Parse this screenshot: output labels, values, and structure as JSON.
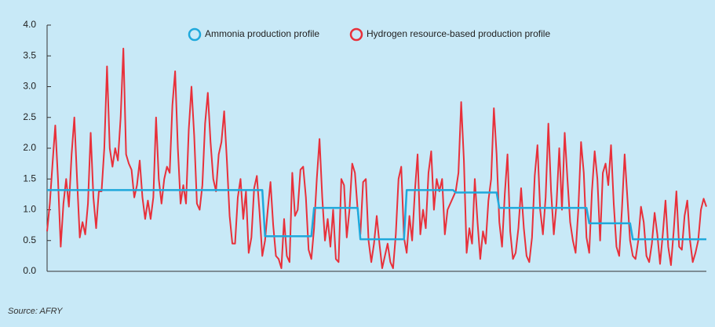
{
  "chart_data": {
    "type": "line",
    "source": "Source: AFRY",
    "ylim": [
      0,
      4
    ],
    "yticks": [
      {
        "value": 0,
        "label": "0.0"
      },
      0.5,
      {
        "value": 1,
        "label": "1.0"
      },
      1.5,
      {
        "value": 2,
        "label": "2.0"
      },
      2.5,
      {
        "value": 3,
        "label": "3.0"
      },
      3.5,
      {
        "value": 4,
        "label": "4.0"
      }
    ],
    "series": [
      {
        "name": "Ammonia production profile",
        "color": "#1fa9dc",
        "values": [
          1.32,
          1.32,
          1.32,
          1.32,
          1.32,
          1.32,
          1.32,
          1.32,
          1.32,
          1.32,
          1.32,
          1.32,
          1.32,
          1.32,
          1.32,
          1.32,
          1.32,
          1.32,
          1.32,
          1.32,
          1.32,
          1.32,
          1.32,
          1.32,
          1.32,
          1.32,
          1.32,
          1.32,
          1.32,
          1.32,
          1.32,
          1.32,
          1.32,
          1.32,
          1.32,
          1.32,
          1.32,
          1.32,
          1.32,
          1.32,
          1.32,
          1.32,
          1.32,
          1.32,
          1.32,
          1.32,
          1.32,
          1.32,
          1.32,
          1.32,
          1.32,
          1.32,
          1.32,
          1.32,
          1.32,
          1.32,
          1.32,
          1.32,
          1.32,
          1.32,
          1.32,
          1.32,
          1.32,
          1.32,
          1.32,
          1.32,
          1.32,
          1.32,
          1.32,
          1.32,
          1.32,
          1.32,
          1.32,
          1.32,
          1.32,
          1.32,
          1.32,
          1.32,
          1.32,
          1.32,
          0.57,
          0.57,
          0.57,
          0.57,
          0.57,
          0.57,
          0.57,
          0.57,
          0.57,
          0.57,
          0.57,
          0.57,
          0.57,
          0.57,
          0.57,
          0.57,
          0.57,
          0.57,
          1.03,
          1.03,
          1.03,
          1.03,
          1.03,
          1.03,
          1.03,
          1.03,
          1.03,
          1.03,
          1.03,
          1.03,
          1.03,
          1.03,
          1.03,
          1.03,
          1.03,
          0.52,
          0.52,
          0.52,
          0.52,
          0.52,
          0.52,
          0.52,
          0.52,
          0.52,
          0.52,
          0.52,
          0.52,
          0.52,
          0.52,
          0.52,
          0.52,
          0.52,
          1.32,
          1.32,
          1.32,
          1.32,
          1.32,
          1.32,
          1.32,
          1.32,
          1.32,
          1.32,
          1.32,
          1.32,
          1.32,
          1.32,
          1.32,
          1.32,
          1.32,
          1.32,
          1.28,
          1.28,
          1.28,
          1.28,
          1.28,
          1.28,
          1.28,
          1.28,
          1.28,
          1.28,
          1.28,
          1.28,
          1.28,
          1.28,
          1.28,
          1.28,
          1.03,
          1.03,
          1.03,
          1.03,
          1.03,
          1.03,
          1.03,
          1.03,
          1.03,
          1.03,
          1.03,
          1.03,
          1.03,
          1.03,
          1.03,
          1.03,
          1.03,
          1.03,
          1.03,
          1.03,
          1.03,
          1.03,
          1.03,
          1.03,
          1.03,
          1.03,
          1.03,
          1.03,
          1.03,
          1.03,
          1.03,
          1.03,
          1.03,
          0.78,
          0.78,
          0.78,
          0.78,
          0.78,
          0.78,
          0.78,
          0.78,
          0.78,
          0.78,
          0.78,
          0.78,
          0.78,
          0.78,
          0.78,
          0.78,
          0.52,
          0.52,
          0.52,
          0.52,
          0.52,
          0.52,
          0.52,
          0.52,
          0.52,
          0.52,
          0.52,
          0.52,
          0.52,
          0.52,
          0.52,
          0.52,
          0.52,
          0.52,
          0.52,
          0.52,
          0.52,
          0.52,
          0.52,
          0.52,
          0.52,
          0.52,
          0.52,
          0.52
        ]
      },
      {
        "name": "Hydrogen resource-based production profile",
        "color": "#e8303a",
        "values": [
          0.65,
          1.1,
          1.75,
          2.37,
          1.5,
          0.4,
          1.1,
          1.5,
          1.05,
          1.9,
          2.5,
          1.5,
          0.55,
          0.8,
          0.6,
          1.1,
          2.25,
          1.2,
          0.7,
          1.3,
          1.3,
          2.0,
          3.33,
          2.0,
          1.7,
          2.0,
          1.8,
          2.5,
          3.62,
          1.9,
          1.75,
          1.65,
          1.2,
          1.4,
          1.8,
          1.2,
          0.85,
          1.15,
          0.85,
          1.2,
          2.5,
          1.5,
          1.1,
          1.5,
          1.7,
          1.6,
          2.7,
          3.25,
          2.0,
          1.1,
          1.4,
          1.1,
          2.3,
          3.0,
          2.2,
          1.1,
          1.0,
          1.4,
          2.4,
          2.9,
          2.1,
          1.5,
          1.3,
          1.9,
          2.1,
          2.6,
          1.8,
          0.9,
          0.45,
          0.45,
          1.2,
          1.5,
          0.85,
          1.3,
          0.3,
          0.55,
          1.35,
          1.55,
          0.95,
          0.25,
          0.5,
          1.0,
          1.45,
          0.75,
          0.25,
          0.2,
          0.05,
          0.85,
          0.25,
          0.15,
          1.6,
          0.9,
          1.0,
          1.65,
          1.7,
          1.2,
          0.35,
          0.2,
          0.7,
          1.5,
          2.15,
          1.2,
          0.5,
          0.85,
          0.4,
          1.0,
          0.2,
          0.15,
          1.5,
          1.4,
          0.55,
          1.0,
          1.75,
          1.6,
          1.0,
          0.6,
          1.45,
          1.5,
          0.5,
          0.15,
          0.45,
          0.9,
          0.45,
          0.05,
          0.25,
          0.45,
          0.15,
          0.05,
          0.6,
          1.5,
          1.7,
          0.55,
          0.3,
          0.9,
          0.5,
          1.3,
          1.9,
          0.6,
          1.0,
          0.7,
          1.6,
          1.95,
          1.0,
          1.5,
          1.3,
          1.5,
          0.6,
          1.0,
          1.1,
          1.2,
          1.3,
          1.6,
          2.75,
          1.8,
          0.3,
          0.7,
          0.45,
          1.5,
          0.8,
          0.2,
          0.65,
          0.45,
          1.15,
          1.5,
          2.65,
          1.9,
          0.8,
          0.4,
          1.25,
          1.9,
          0.65,
          0.2,
          0.3,
          0.7,
          1.35,
          0.7,
          0.25,
          0.15,
          0.55,
          1.55,
          2.05,
          1.0,
          0.6,
          1.2,
          2.4,
          1.3,
          0.6,
          1.1,
          2.0,
          1.0,
          2.25,
          1.5,
          0.8,
          0.5,
          0.3,
          1.0,
          2.1,
          1.6,
          0.55,
          0.3,
          1.3,
          1.95,
          1.5,
          0.5,
          1.6,
          1.75,
          1.4,
          2.05,
          1.1,
          0.4,
          0.25,
          1.0,
          1.9,
          1.2,
          0.5,
          0.25,
          0.2,
          0.5,
          1.05,
          0.8,
          0.25,
          0.15,
          0.45,
          0.95,
          0.6,
          0.12,
          0.6,
          1.15,
          0.4,
          0.1,
          0.65,
          1.3,
          0.4,
          0.35,
          0.9,
          1.15,
          0.5,
          0.15,
          0.3,
          0.5,
          1.0,
          1.18,
          1.05
        ]
      }
    ]
  }
}
